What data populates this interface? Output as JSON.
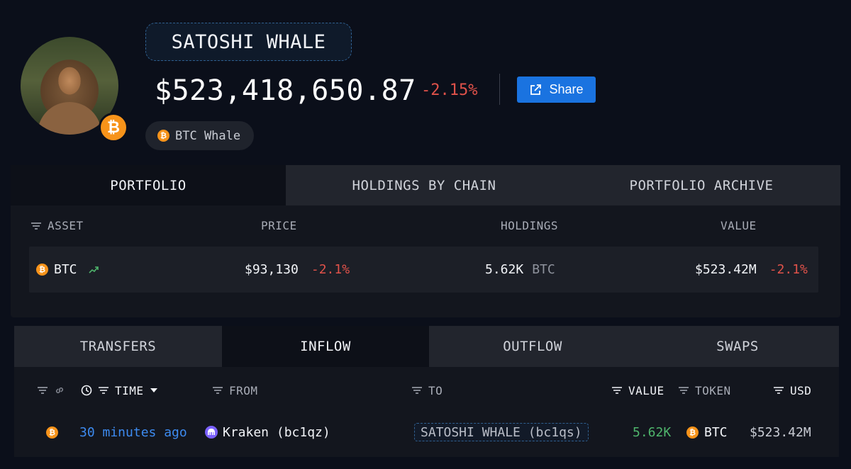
{
  "header": {
    "entity_name": "SATOSHI WHALE",
    "total_value": "$523,418,650.87",
    "total_change": "-2.15%",
    "share_label": "Share",
    "tag_label": "BTC Whale",
    "badge_symbol": "₿"
  },
  "portfolio_tabs": [
    "PORTFOLIO",
    "HOLDINGS BY CHAIN",
    "PORTFOLIO ARCHIVE"
  ],
  "portfolio_columns": {
    "asset": "ASSET",
    "price": "PRICE",
    "holdings": "HOLDINGS",
    "value": "VALUE"
  },
  "portfolio_rows": [
    {
      "symbol": "BTC",
      "price": "$93,130",
      "price_change": "-2.1%",
      "holdings": "5.62K",
      "holdings_unit": "BTC",
      "value": "$523.42M",
      "value_change": "-2.1%"
    }
  ],
  "flow_tabs": [
    "TRANSFERS",
    "INFLOW",
    "OUTFLOW",
    "SWAPS"
  ],
  "flow_columns": {
    "time": "TIME",
    "from": "FROM",
    "to": "TO",
    "value": "VALUE",
    "token": "TOKEN",
    "usd": "USD"
  },
  "flow_rows": [
    {
      "time": "30 minutes ago",
      "from": "Kraken (bc1qz)",
      "to": "SATOSHI WHALE (bc1qs)",
      "value": "5.62K",
      "token": "BTC",
      "usd": "$523.42M"
    }
  ],
  "colors": {
    "background": "#0b0f1a",
    "negative": "#e0524a",
    "positive": "#4fb56c",
    "link": "#3d8bf0",
    "accent": "#1a73e0",
    "btc": "#f7931a"
  }
}
